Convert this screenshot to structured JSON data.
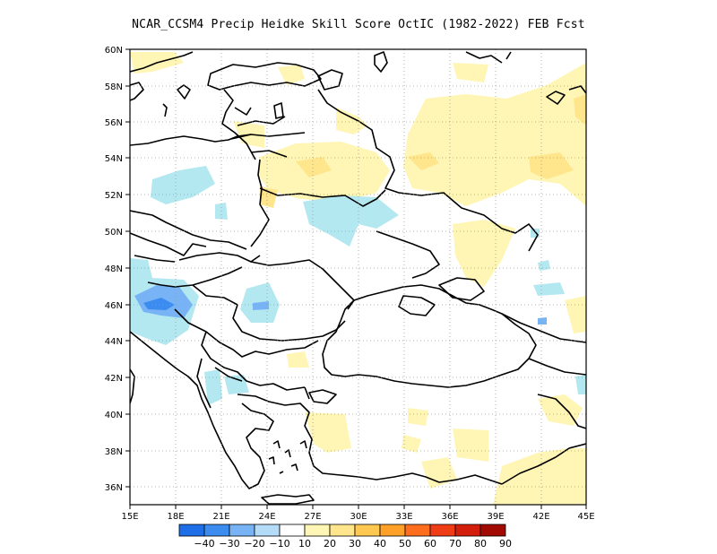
{
  "title": "NCAR_CCSM4 Precip Heidke Skill Score OctIC (1982-2022) FEB Fcst",
  "map": {
    "lon_labels": [
      "15E",
      "18E",
      "21E",
      "24E",
      "27E",
      "30E",
      "33E",
      "36E",
      "39E",
      "42E",
      "45E"
    ],
    "lat_labels": [
      "36N",
      "38N",
      "40N",
      "42N",
      "44N",
      "46N",
      "48N",
      "50N",
      "52N",
      "54N",
      "56N",
      "58N",
      "60N"
    ],
    "extent": {
      "lon": [
        15,
        45
      ],
      "lat": [
        35,
        60
      ]
    },
    "grid": "dotted"
  },
  "colorbar": {
    "labels": [
      "-40",
      "-30",
      "-20",
      "-10",
      "10",
      "20",
      "30",
      "40",
      "50",
      "60",
      "70",
      "80",
      "90"
    ],
    "colors": [
      "#1e6ee8",
      "#3c8cf0",
      "#78b4f5",
      "#b4dcf8",
      "#ffffff",
      "#fff5b4",
      "#ffe68c",
      "#ffc850",
      "#ffa028",
      "#ff6e1e",
      "#f03c14",
      "#d21e0a",
      "#a00a00"
    ]
  },
  "palette": {
    "light_yellow": "#fff5b4",
    "yellow": "#ffe68c",
    "light_blue": "#b4e8f0",
    "blue": "#78b4f5",
    "mid_blue": "#3c8cf0"
  }
}
